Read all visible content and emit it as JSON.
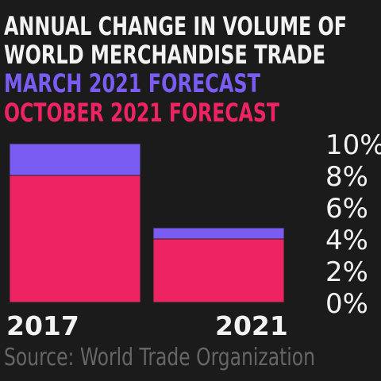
{
  "chart_data": {
    "type": "bar",
    "title": [
      "ANNUAL CHANGE IN VOLUME OF",
      "WORLD MERCHANDISE TRADE"
    ],
    "categories": [
      "2017",
      "2021"
    ],
    "series": [
      {
        "name": "MARCH 2021 FORECAST",
        "color": "#7b5cf2",
        "values": [
          10,
          4.7
        ]
      },
      {
        "name": "OCTOBER 2021 FORECAST",
        "color": "#ee2462",
        "values": [
          8,
          4
        ]
      }
    ],
    "ylim": [
      0,
      10
    ],
    "yticks": [
      {
        "value": 0,
        "label": "0%"
      },
      {
        "value": 2,
        "label": "2%"
      },
      {
        "value": 4,
        "label": "4%"
      },
      {
        "value": 6,
        "label": "6%"
      },
      {
        "value": 8,
        "label": "8%"
      },
      {
        "value": 10,
        "label": "10%"
      }
    ],
    "source": "Source: World Trade Organization"
  }
}
